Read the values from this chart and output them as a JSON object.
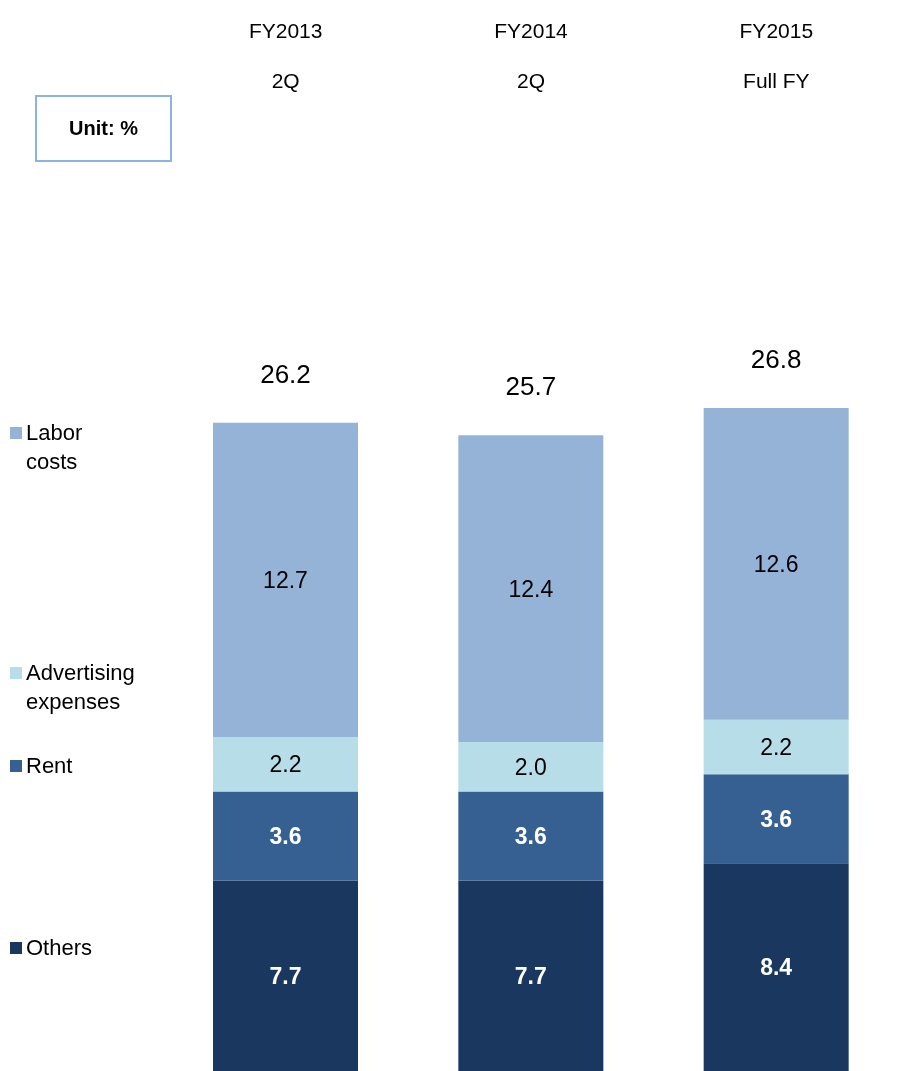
{
  "chart_data": {
    "type": "bar",
    "stacked": true,
    "categories": [
      "FY2013\n2Q",
      "FY2014\n2Q",
      "FY2015\nFull FY"
    ],
    "series": [
      {
        "name": "Others",
        "color": "#1a375f",
        "values": [
          7.7,
          7.7,
          8.4
        ],
        "value_labels": [
          "7.7",
          "7.7",
          "8.4"
        ]
      },
      {
        "name": "Rent",
        "color": "#366092",
        "values": [
          3.6,
          3.6,
          3.6
        ],
        "value_labels": [
          "3.6",
          "3.6",
          "3.6"
        ]
      },
      {
        "name": "Advertising\nexpenses",
        "color": "#b7dde8",
        "values": [
          2.2,
          2.0,
          2.2
        ],
        "value_labels": [
          "2.2",
          "2.0",
          "2.2"
        ]
      },
      {
        "name": "Labor\ncosts",
        "color": "#95b3d7",
        "values": [
          12.7,
          12.4,
          12.6
        ],
        "value_labels": [
          "12.7",
          "12.4",
          "12.6"
        ]
      }
    ],
    "totals": [
      "26.2",
      "25.7",
      "26.8"
    ],
    "legend": "left",
    "tick_labels": "x",
    "annotations": [
      "Unit: %"
    ]
  }
}
